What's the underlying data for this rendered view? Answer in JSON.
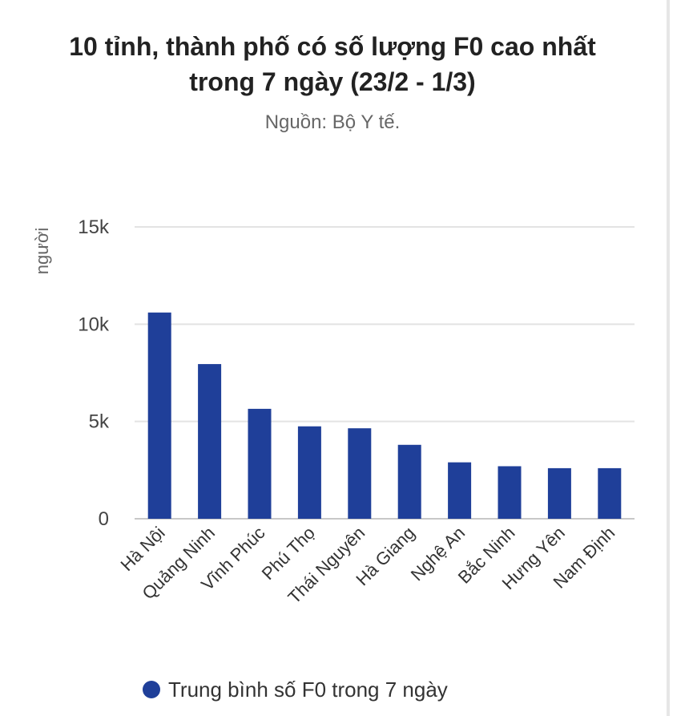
{
  "chart_data": {
    "type": "bar",
    "title": "10 tỉnh, thành phố có số lượng F0 cao nhất trong 7 ngày (23/2 - 1/3)",
    "subtitle": "Nguồn: Bộ Y tế.",
    "ylabel": "người",
    "xlabel": "",
    "categories": [
      "Hà Nội",
      "Quảng Ninh",
      "Vĩnh Phúc",
      "Phú Thọ",
      "Thái Nguyên",
      "Hà Giang",
      "Nghệ An",
      "Bắc Ninh",
      "Hưng Yên",
      "Nam Định"
    ],
    "series": [
      {
        "name": "Trung bình số F0 trong 7 ngày",
        "color": "#1f3f99",
        "values": [
          10600,
          7950,
          5650,
          4750,
          4650,
          3800,
          2900,
          2700,
          2600,
          2600
        ]
      }
    ],
    "ylim": [
      0,
      15000
    ],
    "yticks": [
      0,
      5000,
      10000,
      15000
    ],
    "ytick_labels": [
      "0",
      "5k",
      "10k",
      "15k"
    ],
    "grid": true,
    "legend": "bottom-center"
  }
}
